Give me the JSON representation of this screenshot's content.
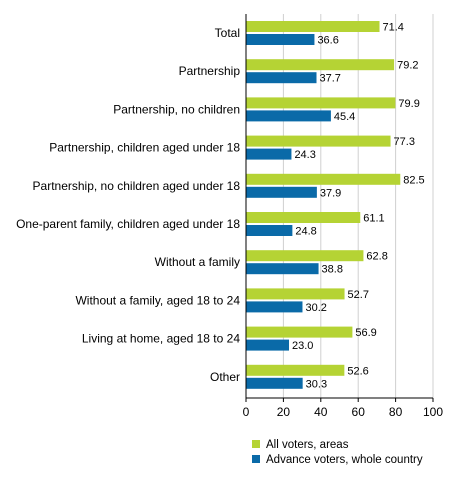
{
  "chart_data": {
    "type": "bar",
    "orientation": "horizontal",
    "categories": [
      "Total",
      "Partnership",
      "Partnership, no children",
      "Partnership, children aged under 18",
      "Partnership, no children aged under 18",
      "One-parent family, children aged under 18",
      "Without a family",
      "Without a family, aged 18 to 24",
      "Living at home, aged 18 to 24",
      "Other"
    ],
    "series": [
      {
        "name": "All voters, areas",
        "color": "#b5d334",
        "values": [
          71.4,
          79.2,
          79.9,
          77.3,
          82.5,
          61.1,
          62.8,
          52.7,
          56.9,
          52.6
        ],
        "labels": [
          "71.4",
          "79.2",
          "79.9",
          "77.3",
          "82.5",
          "61.1",
          "62.8",
          "52.7",
          "56.9",
          "52.6"
        ]
      },
      {
        "name": "Advance voters, whole country",
        "color": "#0a6aa8",
        "values": [
          36.6,
          37.7,
          45.4,
          24.3,
          37.9,
          24.8,
          38.8,
          30.2,
          23.0,
          30.3
        ],
        "labels": [
          "36.6",
          "37.7",
          "45.4",
          "24.3",
          "37.9",
          "24.8",
          "38.8",
          "30.2",
          "23.0",
          "30.3"
        ]
      }
    ],
    "xlim": [
      0,
      100
    ],
    "ticks": [
      0,
      20,
      40,
      60,
      80,
      100
    ],
    "tick_labels": [
      "0",
      "20",
      "40",
      "60",
      "80",
      "100"
    ],
    "grid": "vertical",
    "legend_position": "bottom"
  }
}
